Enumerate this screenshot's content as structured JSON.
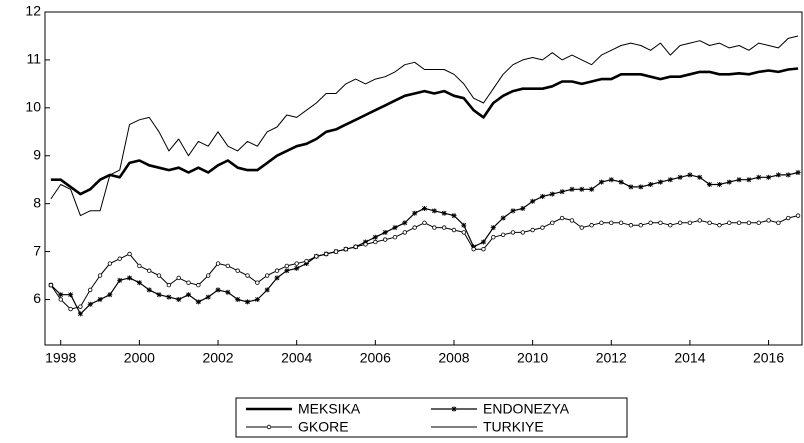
{
  "chart_data": {
    "type": "line",
    "x": [
      1997.75,
      1998,
      1998.25,
      1998.5,
      1998.75,
      1999,
      1999.25,
      1999.5,
      1999.75,
      2000,
      2000.25,
      2000.5,
      2000.75,
      2001,
      2001.25,
      2001.5,
      2001.75,
      2002,
      2002.25,
      2002.5,
      2002.75,
      2003,
      2003.25,
      2003.5,
      2003.75,
      2004,
      2004.25,
      2004.5,
      2004.75,
      2005,
      2005.25,
      2005.5,
      2005.75,
      2006,
      2006.25,
      2006.5,
      2006.75,
      2007,
      2007.25,
      2007.5,
      2007.75,
      2008,
      2008.25,
      2008.5,
      2008.75,
      2009,
      2009.25,
      2009.5,
      2009.75,
      2010,
      2010.25,
      2010.5,
      2010.75,
      2011,
      2011.25,
      2011.5,
      2011.75,
      2012,
      2012.25,
      2012.5,
      2012.75,
      2013,
      2013.25,
      2013.5,
      2013.75,
      2014,
      2014.25,
      2014.5,
      2014.75,
      2015,
      2015.25,
      2015.5,
      2015.75,
      2016,
      2016.25,
      2016.5,
      2016.75
    ],
    "series": [
      {
        "name": "MEKSIKA",
        "color": "#000000",
        "width": 2.6,
        "marker": "none",
        "values": [
          8.5,
          8.5,
          8.35,
          8.2,
          8.3,
          8.5,
          8.6,
          8.55,
          8.85,
          8.9,
          8.8,
          8.75,
          8.7,
          8.75,
          8.65,
          8.75,
          8.65,
          8.8,
          8.9,
          8.75,
          8.7,
          8.7,
          8.85,
          9.0,
          9.1,
          9.2,
          9.25,
          9.35,
          9.5,
          9.55,
          9.65,
          9.75,
          9.85,
          9.95,
          10.05,
          10.15,
          10.25,
          10.3,
          10.35,
          10.3,
          10.35,
          10.25,
          10.2,
          9.95,
          9.8,
          10.1,
          10.25,
          10.35,
          10.4,
          10.4,
          10.4,
          10.45,
          10.55,
          10.55,
          10.5,
          10.55,
          10.6,
          10.6,
          10.7,
          10.7,
          10.7,
          10.65,
          10.6,
          10.65,
          10.65,
          10.7,
          10.75,
          10.75,
          10.7,
          10.7,
          10.72,
          10.7,
          10.75,
          10.78,
          10.75,
          10.8,
          10.82
        ]
      },
      {
        "name": "ENDONEZYA",
        "color": "#000000",
        "width": 1.2,
        "marker": "star",
        "values": [
          6.3,
          6.1,
          6.1,
          5.7,
          5.9,
          6.0,
          6.1,
          6.4,
          6.45,
          6.35,
          6.2,
          6.1,
          6.05,
          6.0,
          6.1,
          5.95,
          6.05,
          6.2,
          6.15,
          6.0,
          5.95,
          6.0,
          6.2,
          6.45,
          6.6,
          6.65,
          6.75,
          6.9,
          6.95,
          7.0,
          7.05,
          7.1,
          7.2,
          7.3,
          7.4,
          7.5,
          7.6,
          7.8,
          7.9,
          7.85,
          7.8,
          7.75,
          7.55,
          7.1,
          7.2,
          7.5,
          7.7,
          7.85,
          7.9,
          8.05,
          8.15,
          8.2,
          8.25,
          8.3,
          8.3,
          8.3,
          8.45,
          8.5,
          8.45,
          8.35,
          8.35,
          8.4,
          8.45,
          8.5,
          8.55,
          8.6,
          8.55,
          8.4,
          8.4,
          8.45,
          8.5,
          8.5,
          8.55,
          8.55,
          8.6,
          8.6,
          8.65
        ]
      },
      {
        "name": "GKORE",
        "color": "#000000",
        "width": 1,
        "marker": "circle",
        "values": [
          6.3,
          6.0,
          5.8,
          5.85,
          6.2,
          6.5,
          6.75,
          6.85,
          6.95,
          6.7,
          6.6,
          6.5,
          6.3,
          6.45,
          6.35,
          6.3,
          6.5,
          6.75,
          6.7,
          6.6,
          6.5,
          6.35,
          6.5,
          6.6,
          6.7,
          6.75,
          6.8,
          6.9,
          6.95,
          7.0,
          7.05,
          7.1,
          7.15,
          7.2,
          7.25,
          7.3,
          7.4,
          7.5,
          7.6,
          7.5,
          7.5,
          7.45,
          7.4,
          7.05,
          7.05,
          7.3,
          7.35,
          7.4,
          7.4,
          7.45,
          7.5,
          7.6,
          7.7,
          7.65,
          7.5,
          7.55,
          7.6,
          7.6,
          7.6,
          7.55,
          7.55,
          7.6,
          7.6,
          7.55,
          7.6,
          7.6,
          7.65,
          7.6,
          7.55,
          7.6,
          7.6,
          7.6,
          7.6,
          7.65,
          7.6,
          7.7,
          7.75
        ]
      },
      {
        "name": "TURKIYE",
        "color": "#000000",
        "width": 1,
        "marker": "none",
        "values": [
          8.1,
          8.4,
          8.3,
          7.75,
          7.85,
          7.85,
          8.6,
          8.7,
          9.65,
          9.75,
          9.8,
          9.5,
          9.1,
          9.35,
          9.0,
          9.3,
          9.2,
          9.5,
          9.2,
          9.1,
          9.3,
          9.2,
          9.5,
          9.6,
          9.85,
          9.8,
          9.95,
          10.1,
          10.3,
          10.3,
          10.5,
          10.6,
          10.5,
          10.6,
          10.65,
          10.75,
          10.9,
          10.95,
          10.8,
          10.8,
          10.8,
          10.7,
          10.5,
          10.2,
          10.1,
          10.4,
          10.7,
          10.9,
          11.0,
          11.05,
          11.0,
          11.15,
          11.0,
          11.1,
          11.0,
          10.9,
          11.1,
          11.2,
          11.3,
          11.35,
          11.3,
          11.2,
          11.35,
          11.1,
          11.3,
          11.35,
          11.4,
          11.3,
          11.35,
          11.25,
          11.3,
          11.2,
          11.35,
          11.3,
          11.25,
          11.45,
          11.5
        ]
      }
    ],
    "xlim": [
      1997.6,
      2016.85
    ],
    "xticks": [
      1998,
      2000,
      2002,
      2004,
      2006,
      2008,
      2010,
      2012,
      2014,
      2016
    ],
    "ylim": [
      5.05,
      12
    ],
    "yticks": [
      6,
      7,
      8,
      9,
      10,
      11,
      12
    ],
    "legend": "bottom"
  }
}
